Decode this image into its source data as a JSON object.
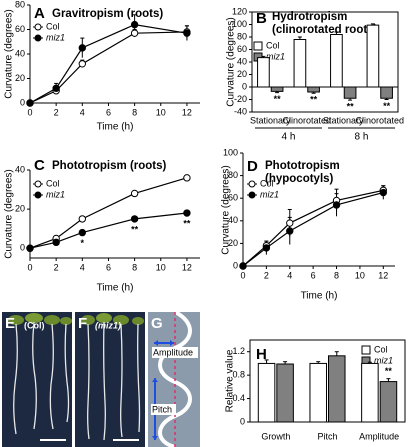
{
  "chart_data": [
    {
      "label": "A",
      "type": "line",
      "title": "Gravitropism (roots)",
      "xlabel": "Time (h)",
      "ylabel": "Curvature (degrees)",
      "xlim": [
        0,
        13
      ],
      "xticks": [
        0,
        2,
        4,
        6,
        8,
        10,
        12
      ],
      "ylim": [
        0,
        80
      ],
      "yticks": [
        0,
        20,
        40,
        60,
        80
      ],
      "x": [
        0,
        2,
        4,
        8,
        12
      ],
      "series": [
        {
          "name": "Col",
          "color": "#ffffff",
          "values": [
            0,
            10,
            32,
            57,
            58
          ],
          "errors": [
            0,
            2,
            3,
            3,
            5
          ]
        },
        {
          "name": "miz1",
          "color": "#000000",
          "values": [
            0,
            12,
            45,
            64,
            57
          ],
          "errors": [
            0,
            4,
            8,
            8,
            6
          ]
        }
      ]
    },
    {
      "label": "B",
      "type": "bar",
      "title": "Hydrotropism",
      "subtitle": "(clinorotated roots)",
      "ylabel": "Curvature (degrees)",
      "categories": [
        "Stationary",
        "Clinorotated",
        "Stationary",
        "Clinorotated"
      ],
      "groups": [
        "4 h",
        "8 h"
      ],
      "ylim": [
        -40,
        120
      ],
      "yticks": [
        -40,
        -20,
        0,
        20,
        40,
        60,
        80,
        100,
        120
      ],
      "series": [
        {
          "name": "Col",
          "color": "#ffffff",
          "values": [
            47,
            76,
            84,
            99
          ],
          "errors": [
            2,
            4,
            4,
            2
          ]
        },
        {
          "name": "miz1",
          "color": "#808080",
          "values": [
            -7,
            -8,
            -18,
            -18
          ],
          "errors": [
            2,
            2,
            3,
            2
          ],
          "annotations": [
            "**",
            "**",
            "**",
            "**"
          ]
        }
      ]
    },
    {
      "label": "C",
      "type": "line",
      "title": "Phototropism (roots)",
      "xlabel": "Time (h)",
      "ylabel": "Curvature (degrees)",
      "xlim": [
        0,
        13
      ],
      "xticks": [
        0,
        2,
        4,
        6,
        8,
        10,
        12
      ],
      "ylim": [
        -5,
        40
      ],
      "yticks": [
        0,
        20,
        40
      ],
      "x": [
        0,
        2,
        4,
        8,
        12
      ],
      "series": [
        {
          "name": "Col",
          "color": "#ffffff",
          "values": [
            0,
            5,
            15,
            28,
            36
          ],
          "errors": [
            0,
            1,
            1,
            1,
            1
          ]
        },
        {
          "name": "miz1",
          "color": "#000000",
          "values": [
            0,
            3,
            8,
            15,
            18
          ],
          "errors": [
            0,
            1,
            1,
            1,
            1
          ],
          "annotations": [
            null,
            null,
            "*",
            "**",
            "**"
          ]
        }
      ]
    },
    {
      "label": "D",
      "type": "line",
      "title": "Phototropism",
      "subtitle": "(hypocotyls)",
      "xlabel": "Time (h)",
      "ylabel": "Curvature (degrees)",
      "xlim": [
        0,
        13
      ],
      "xticks": [
        0,
        2,
        4,
        6,
        8,
        10,
        12
      ],
      "ylim": [
        0,
        100
      ],
      "yticks": [
        0,
        20,
        40,
        60,
        80,
        100
      ],
      "x": [
        0,
        2,
        4,
        8,
        12
      ],
      "series": [
        {
          "name": "Col",
          "color": "#ffffff",
          "values": [
            0,
            18,
            38,
            58,
            67
          ],
          "errors": [
            0,
            4,
            12,
            10,
            4
          ]
        },
        {
          "name": "miz1",
          "color": "#000000",
          "values": [
            0,
            16,
            31,
            54,
            65
          ],
          "errors": [
            0,
            6,
            12,
            10,
            6
          ]
        }
      ]
    },
    {
      "label": "H",
      "type": "bar",
      "ylabel": "Relative value",
      "categories": [
        "Growth",
        "Pitch",
        "Amplitude"
      ],
      "ylim": [
        0,
        1.4
      ],
      "yticks": [
        0,
        0.4,
        0.8,
        1.2
      ],
      "series": [
        {
          "name": "Col",
          "color": "#ffffff",
          "values": [
            1,
            1,
            1
          ],
          "errors": [
            0.06,
            0.03,
            0.02
          ]
        },
        {
          "name": "miz1",
          "color": "#808080",
          "values": [
            0.99,
            1.13,
            0.69
          ],
          "errors": [
            0.04,
            0.07,
            0.05
          ],
          "annotations": [
            null,
            null,
            "**"
          ]
        }
      ]
    }
  ],
  "photos": [
    {
      "label": "E",
      "caption": "(Col)"
    },
    {
      "label": "F",
      "caption": "(miz1)"
    }
  ],
  "diagram": {
    "label": "G",
    "amplitude": "Amplitude",
    "pitch": "Pitch"
  }
}
